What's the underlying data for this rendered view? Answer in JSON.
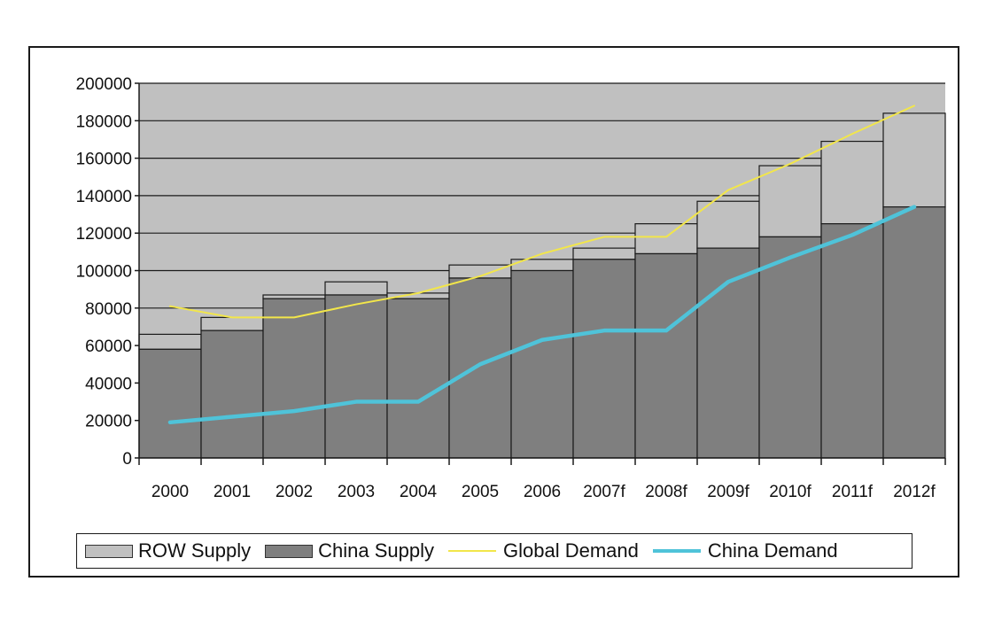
{
  "chart_data": {
    "type": "bar",
    "title": "",
    "xlabel": "",
    "ylabel": "",
    "ylim": [
      0,
      200000
    ],
    "yticks": [
      0,
      20000,
      40000,
      60000,
      80000,
      100000,
      120000,
      140000,
      160000,
      180000,
      200000
    ],
    "categories": [
      "2000",
      "2001",
      "2002",
      "2003",
      "2004",
      "2005",
      "2006",
      "2007f",
      "2008f",
      "2009f",
      "2010f",
      "2011f",
      "2012f"
    ],
    "stacked": true,
    "series": [
      {
        "name": "China Supply",
        "kind": "bar",
        "color": "#7f7f7f",
        "values": [
          58000,
          68000,
          85000,
          87000,
          85000,
          96000,
          100000,
          106000,
          109000,
          112000,
          118000,
          125000,
          134000
        ]
      },
      {
        "name": "ROW Supply",
        "kind": "bar",
        "color": "#c0c0c0",
        "values": [
          8000,
          7000,
          2000,
          7000,
          3000,
          7000,
          6000,
          6000,
          16000,
          25000,
          38000,
          44000,
          50000
        ]
      },
      {
        "name": "Global Demand",
        "kind": "line",
        "color": "#f2e64a",
        "values": [
          81000,
          75000,
          75000,
          82000,
          88000,
          97000,
          109000,
          118000,
          118000,
          143000,
          157000,
          173000,
          188000
        ]
      },
      {
        "name": "China Demand",
        "kind": "line",
        "color": "#4fc3d9",
        "values": [
          19000,
          22000,
          25000,
          30000,
          30000,
          50000,
          63000,
          68000,
          68000,
          94000,
          107000,
          119000,
          134000
        ]
      }
    ],
    "legend_position": "bottom",
    "plot_background": "#c0c0c0",
    "grid": true
  }
}
